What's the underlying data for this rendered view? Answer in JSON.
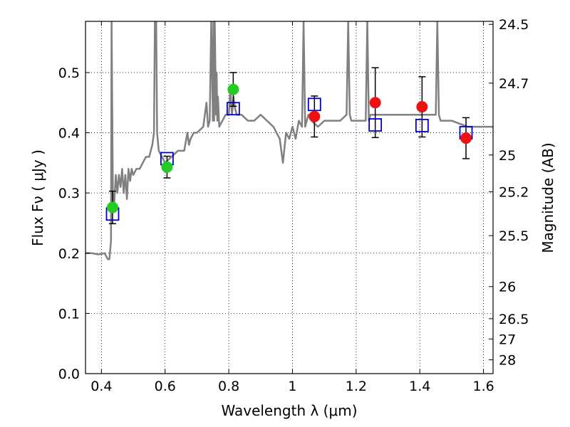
{
  "chart_data": {
    "type": "scatter",
    "xlabel": "Wavelength  λ (μm)",
    "ylabel": "Flux  Fν  ( μJy )",
    "y2label": "Magnitude (AB)",
    "xlim": [
      0.35,
      1.63
    ],
    "ylim": [
      0.0,
      0.585
    ],
    "grid": true,
    "x_ticks": [
      0.4,
      0.6,
      0.8,
      1.0,
      1.2,
      1.4,
      1.6
    ],
    "x_tick_labels": [
      "0.4",
      "0.6",
      "0.8",
      "1",
      "1.2",
      "1.4",
      "1.6"
    ],
    "y_ticks": [
      0.0,
      0.1,
      0.2,
      0.3,
      0.4,
      0.5
    ],
    "y_tick_labels": [
      "0.0",
      "0.1",
      "0.2",
      "0.3",
      "0.4",
      "0.5"
    ],
    "y2_ticks": [
      {
        "label": "24.5",
        "flux": 0.58
      },
      {
        "label": "24.7",
        "flux": 0.4824
      },
      {
        "label": "25",
        "flux": 0.3631
      },
      {
        "label": "25.2",
        "flux": 0.302
      },
      {
        "label": "25.5",
        "flux": 0.2291
      },
      {
        "label": "26",
        "flux": 0.1445
      },
      {
        "label": "26.5",
        "flux": 0.0912
      },
      {
        "label": "27",
        "flux": 0.0575
      },
      {
        "label": "28",
        "flux": 0.0229
      }
    ],
    "model_spectrum": {
      "color": "#808080",
      "x": [
        0.35,
        0.37,
        0.39,
        0.41,
        0.42,
        0.425,
        0.43,
        0.432,
        0.436,
        0.44,
        0.445,
        0.45,
        0.455,
        0.46,
        0.465,
        0.47,
        0.475,
        0.48,
        0.485,
        0.49,
        0.495,
        0.5,
        0.51,
        0.52,
        0.53,
        0.54,
        0.55,
        0.56,
        0.565,
        0.568,
        0.572,
        0.575,
        0.58,
        0.59,
        0.6,
        0.62,
        0.64,
        0.66,
        0.67,
        0.675,
        0.68,
        0.69,
        0.7,
        0.72,
        0.73,
        0.735,
        0.74,
        0.745,
        0.75,
        0.752,
        0.754,
        0.756,
        0.76,
        0.762,
        0.764,
        0.766,
        0.77,
        0.78,
        0.79,
        0.8,
        0.805,
        0.81,
        0.815,
        0.82,
        0.825,
        0.83,
        0.84,
        0.86,
        0.88,
        0.9,
        0.92,
        0.94,
        0.96,
        0.97,
        0.98,
        0.99,
        1.0,
        1.01,
        1.02,
        1.03,
        1.035,
        1.04,
        1.05,
        1.06,
        1.08,
        1.1,
        1.13,
        1.15,
        1.17,
        1.175,
        1.18,
        1.185,
        1.19,
        1.2,
        1.22,
        1.23,
        1.235,
        1.24,
        1.245,
        1.25,
        1.28,
        1.3,
        1.35,
        1.4,
        1.44,
        1.45,
        1.455,
        1.46,
        1.465,
        1.47,
        1.5,
        1.55,
        1.57,
        1.6,
        1.63
      ],
      "y": [
        0.2,
        0.2,
        0.198,
        0.2,
        0.19,
        0.19,
        0.22,
        0.585,
        0.3,
        0.28,
        0.33,
        0.3,
        0.33,
        0.31,
        0.34,
        0.3,
        0.33,
        0.29,
        0.34,
        0.32,
        0.34,
        0.33,
        0.34,
        0.34,
        0.35,
        0.36,
        0.36,
        0.38,
        0.4,
        0.585,
        0.585,
        0.4,
        0.37,
        0.36,
        0.35,
        0.36,
        0.37,
        0.37,
        0.4,
        0.38,
        0.39,
        0.4,
        0.4,
        0.41,
        0.45,
        0.41,
        0.42,
        0.585,
        0.42,
        0.585,
        0.42,
        0.585,
        0.43,
        0.5,
        0.42,
        0.46,
        0.41,
        0.42,
        0.43,
        0.43,
        0.47,
        0.43,
        0.46,
        0.44,
        0.43,
        0.43,
        0.43,
        0.42,
        0.42,
        0.43,
        0.42,
        0.41,
        0.39,
        0.35,
        0.4,
        0.39,
        0.41,
        0.39,
        0.42,
        0.41,
        0.585,
        0.41,
        0.43,
        0.42,
        0.41,
        0.42,
        0.42,
        0.42,
        0.43,
        0.585,
        0.43,
        0.42,
        0.42,
        0.42,
        0.42,
        0.42,
        0.585,
        0.42,
        0.43,
        0.43,
        0.43,
        0.43,
        0.43,
        0.43,
        0.43,
        0.43,
        0.585,
        0.43,
        0.42,
        0.42,
        0.42,
        0.41,
        0.41,
        0.41,
        0.41
      ]
    },
    "model_photometry": {
      "marker": "open-square",
      "color": "#0000cc",
      "points": [
        {
          "x": 0.435,
          "y": 0.265
        },
        {
          "x": 0.606,
          "y": 0.357
        },
        {
          "x": 0.814,
          "y": 0.44
        },
        {
          "x": 1.069,
          "y": 0.447
        },
        {
          "x": 1.26,
          "y": 0.413
        },
        {
          "x": 1.407,
          "y": 0.412
        },
        {
          "x": 1.545,
          "y": 0.4
        }
      ]
    },
    "observed_optical": {
      "marker": "filled-circle",
      "color": "#22cc22",
      "points": [
        {
          "x": 0.435,
          "y": 0.276,
          "err": 0.027
        },
        {
          "x": 0.606,
          "y": 0.343,
          "err": 0.018
        },
        {
          "x": 0.814,
          "y": 0.472,
          "err": 0.028
        }
      ]
    },
    "observed_infrared": {
      "marker": "filled-circle",
      "color": "#ee1111",
      "points": [
        {
          "x": 1.069,
          "y": 0.427,
          "err": 0.034
        },
        {
          "x": 1.26,
          "y": 0.45,
          "err": 0.058
        },
        {
          "x": 1.407,
          "y": 0.443,
          "err": 0.05
        },
        {
          "x": 1.545,
          "y": 0.391,
          "err": 0.034
        }
      ]
    }
  }
}
